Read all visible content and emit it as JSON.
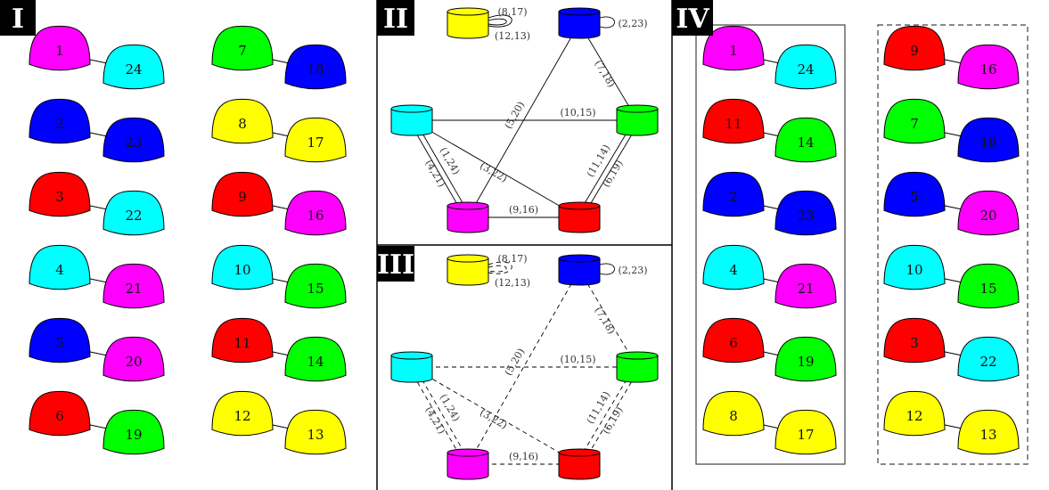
{
  "panels": {
    "p1": {
      "tag": "I"
    },
    "p2": {
      "tag": "II"
    },
    "p3": {
      "tag": "III"
    },
    "p4": {
      "tag": "IV"
    }
  },
  "colors": {
    "magenta": "#ff00ff",
    "cyan": "#00ffff",
    "blue": "#0000ff",
    "red": "#ff0000",
    "green": "#00ff00",
    "yellow": "#ffff00"
  },
  "panel_I_pairs": [
    {
      "a": {
        "n": "1",
        "c": "magenta"
      },
      "b": {
        "n": "24",
        "c": "cyan"
      }
    },
    {
      "a": {
        "n": "2",
        "c": "blue"
      },
      "b": {
        "n": "23",
        "c": "blue"
      }
    },
    {
      "a": {
        "n": "3",
        "c": "red"
      },
      "b": {
        "n": "22",
        "c": "cyan"
      }
    },
    {
      "a": {
        "n": "4",
        "c": "cyan"
      },
      "b": {
        "n": "21",
        "c": "magenta"
      }
    },
    {
      "a": {
        "n": "5",
        "c": "blue"
      },
      "b": {
        "n": "20",
        "c": "magenta"
      }
    },
    {
      "a": {
        "n": "6",
        "c": "red"
      },
      "b": {
        "n": "19",
        "c": "green"
      }
    },
    {
      "a": {
        "n": "7",
        "c": "green"
      },
      "b": {
        "n": "18",
        "c": "blue"
      }
    },
    {
      "a": {
        "n": "8",
        "c": "yellow"
      },
      "b": {
        "n": "17",
        "c": "yellow"
      }
    },
    {
      "a": {
        "n": "9",
        "c": "red"
      },
      "b": {
        "n": "16",
        "c": "magenta"
      }
    },
    {
      "a": {
        "n": "10",
        "c": "cyan"
      },
      "b": {
        "n": "15",
        "c": "green"
      }
    },
    {
      "a": {
        "n": "11",
        "c": "red"
      },
      "b": {
        "n": "14",
        "c": "green"
      }
    },
    {
      "a": {
        "n": "12",
        "c": "yellow"
      },
      "b": {
        "n": "13",
        "c": "yellow"
      }
    }
  ],
  "panel_IV_left": [
    {
      "a": {
        "n": "1",
        "c": "magenta"
      },
      "b": {
        "n": "24",
        "c": "cyan"
      }
    },
    {
      "a": {
        "n": "11",
        "c": "red"
      },
      "b": {
        "n": "14",
        "c": "green"
      }
    },
    {
      "a": {
        "n": "2",
        "c": "blue"
      },
      "b": {
        "n": "23",
        "c": "blue"
      }
    },
    {
      "a": {
        "n": "4",
        "c": "cyan"
      },
      "b": {
        "n": "21",
        "c": "magenta"
      }
    },
    {
      "a": {
        "n": "6",
        "c": "red"
      },
      "b": {
        "n": "19",
        "c": "green"
      }
    },
    {
      "a": {
        "n": "8",
        "c": "yellow"
      },
      "b": {
        "n": "17",
        "c": "yellow"
      }
    }
  ],
  "panel_IV_right": [
    {
      "a": {
        "n": "9",
        "c": "red"
      },
      "b": {
        "n": "16",
        "c": "magenta"
      }
    },
    {
      "a": {
        "n": "7",
        "c": "green"
      },
      "b": {
        "n": "18",
        "c": "blue"
      }
    },
    {
      "a": {
        "n": "5",
        "c": "blue"
      },
      "b": {
        "n": "20",
        "c": "magenta"
      }
    },
    {
      "a": {
        "n": "10",
        "c": "cyan"
      },
      "b": {
        "n": "15",
        "c": "green"
      }
    },
    {
      "a": {
        "n": "3",
        "c": "red"
      },
      "b": {
        "n": "22",
        "c": "cyan"
      }
    },
    {
      "a": {
        "n": "12",
        "c": "yellow"
      },
      "b": {
        "n": "13",
        "c": "yellow"
      }
    }
  ],
  "graph": {
    "nodes": [
      {
        "id": "Y",
        "c": "yellow"
      },
      {
        "id": "B",
        "c": "blue"
      },
      {
        "id": "C",
        "c": "cyan"
      },
      {
        "id": "G",
        "c": "green"
      },
      {
        "id": "M",
        "c": "magenta"
      },
      {
        "id": "R",
        "c": "red"
      }
    ],
    "loops": {
      "Y": [
        "(8,17)",
        "(12,13)"
      ],
      "B": [
        "(2,23)"
      ]
    },
    "edges": [
      {
        "from": "B",
        "to": "M",
        "label": "(5,20)",
        "mult": 1
      },
      {
        "from": "B",
        "to": "G",
        "label": "(7,18)",
        "mult": 1
      },
      {
        "from": "C",
        "to": "G",
        "label": "(10,15)",
        "mult": 1
      },
      {
        "from": "C",
        "to": "M",
        "label": "(1,24)",
        "label2": "(4,21)",
        "mult": 2
      },
      {
        "from": "C",
        "to": "R",
        "label": "(3,22)",
        "mult": 1
      },
      {
        "from": "G",
        "to": "R",
        "label": "(6,19)",
        "label2": "(11,14)",
        "mult": 2
      },
      {
        "from": "M",
        "to": "R",
        "label": "(9,16)",
        "mult": 1
      }
    ]
  }
}
